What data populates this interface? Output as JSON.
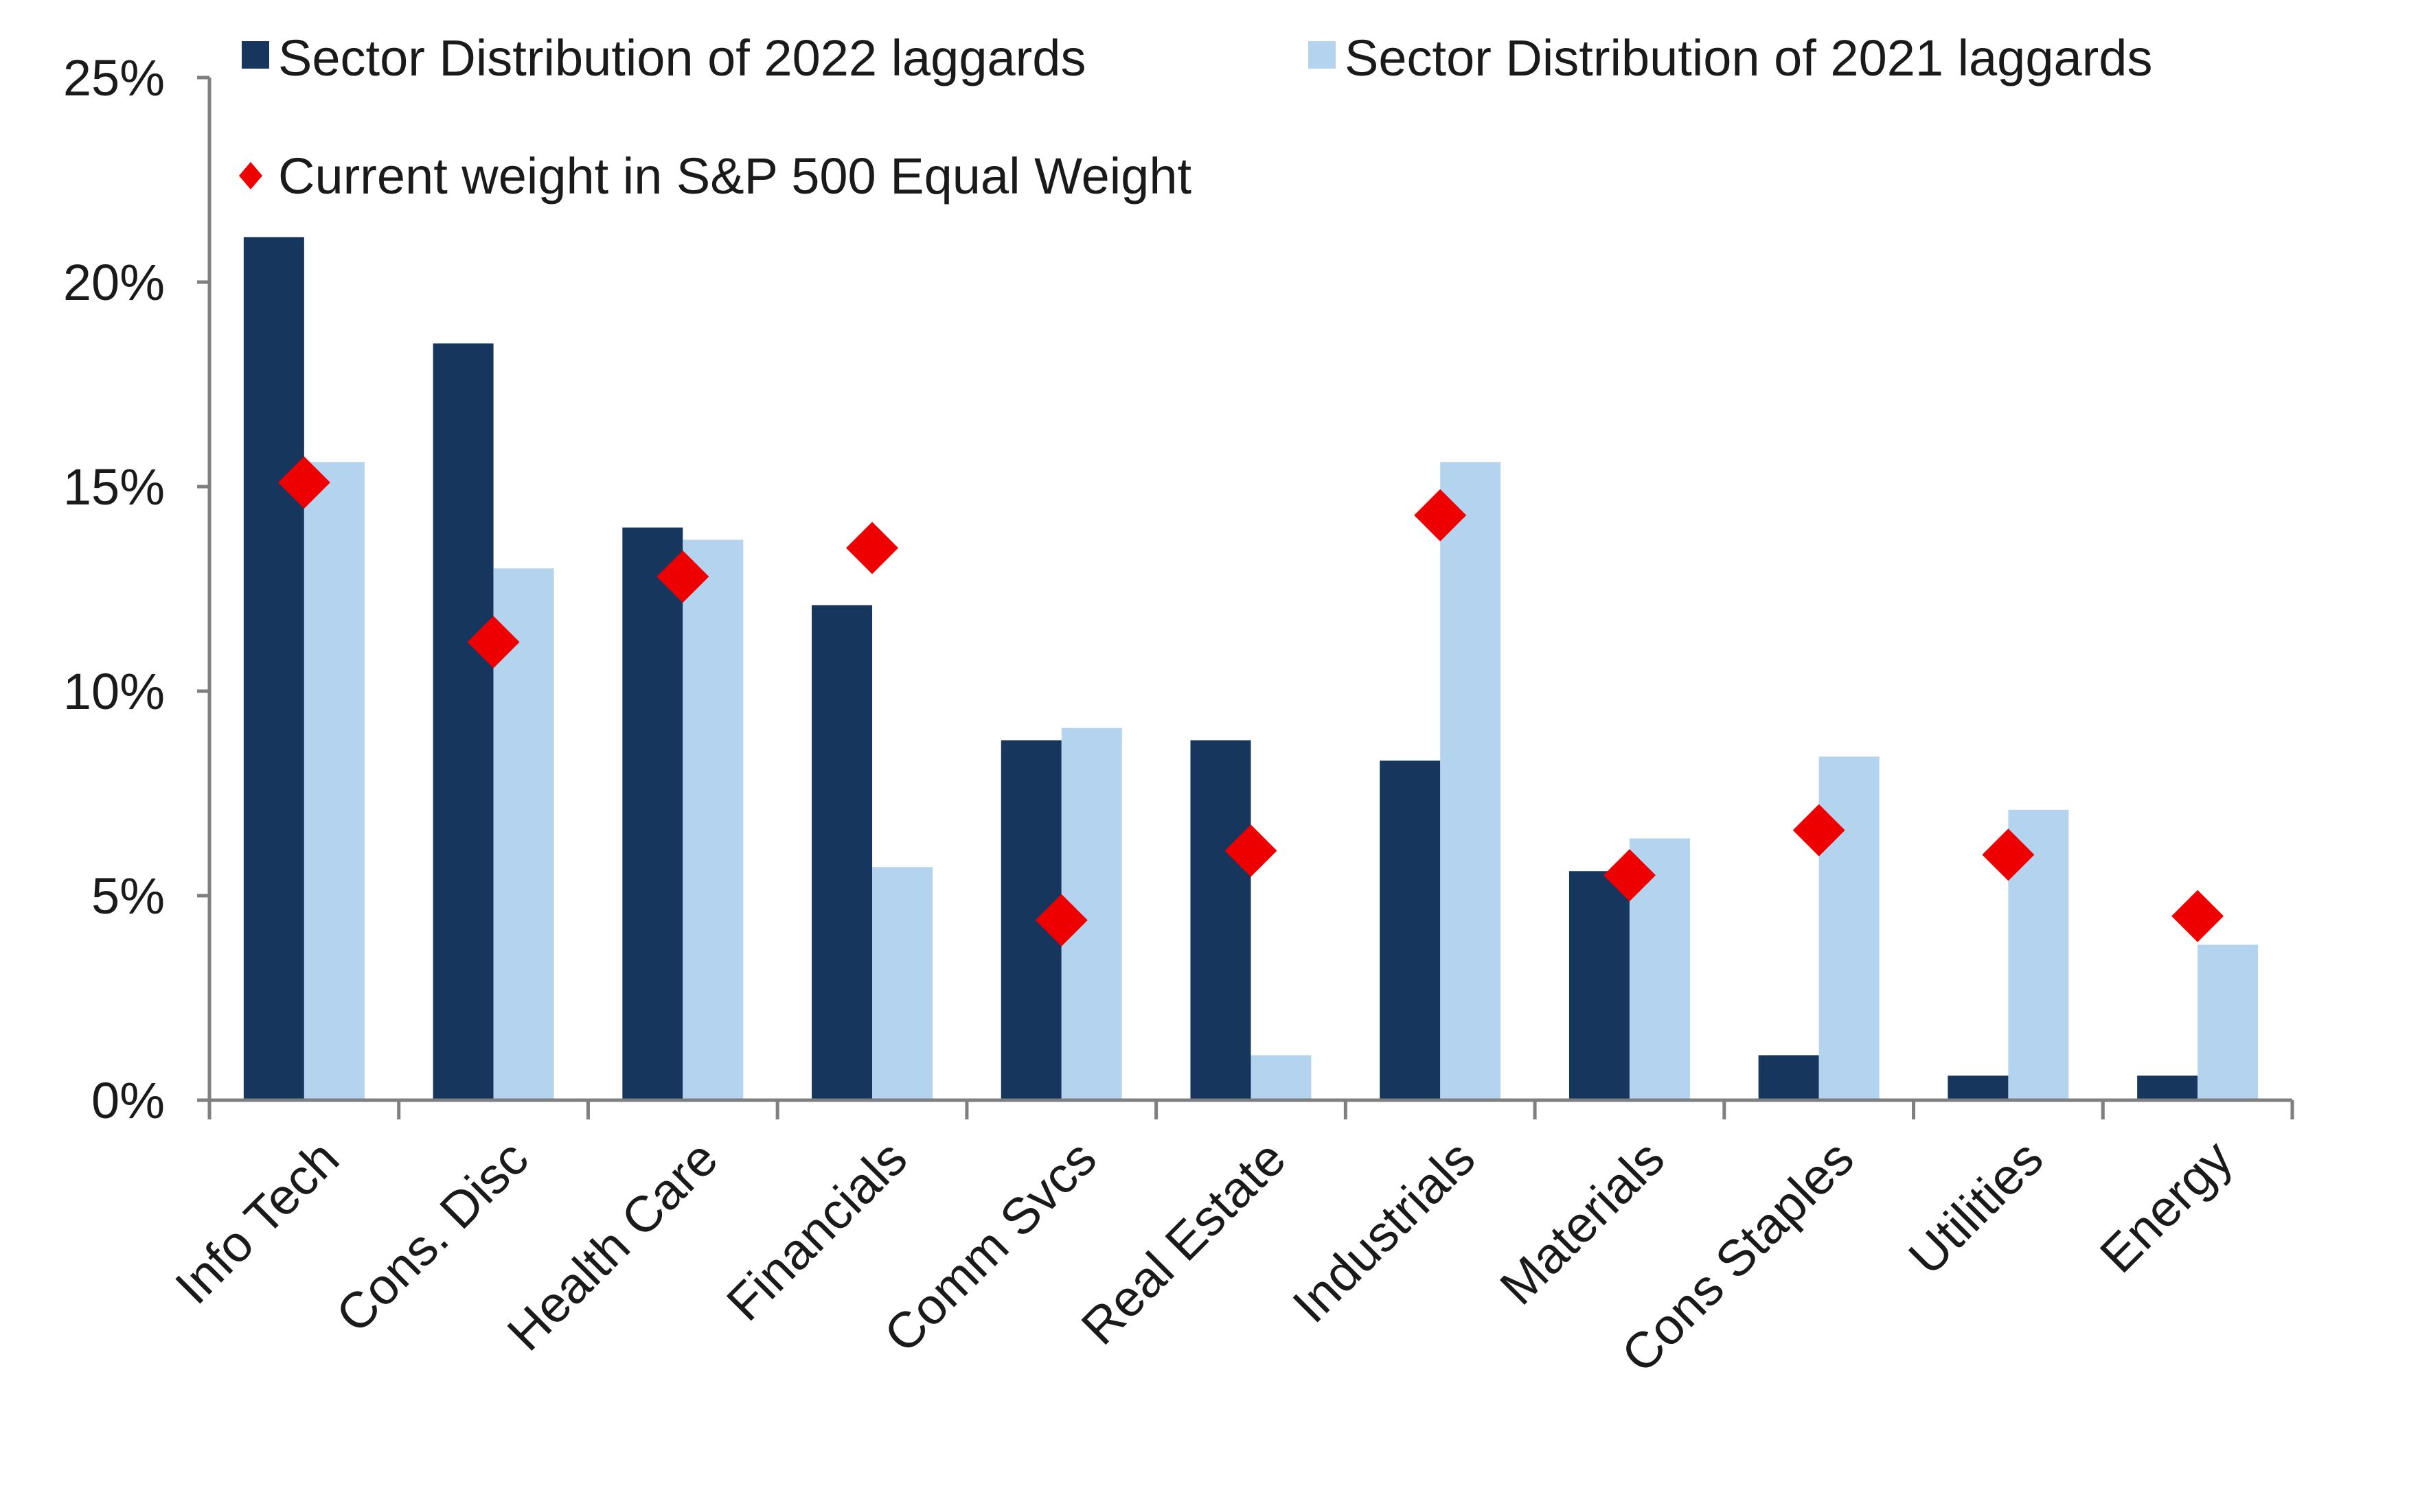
{
  "chart_data": {
    "type": "bar",
    "title": "",
    "xlabel": "",
    "ylabel": "",
    "ylim": [
      0,
      25
    ],
    "yticks": [
      0,
      5,
      10,
      15,
      20,
      25
    ],
    "ytick_labels": [
      "0%",
      "5%",
      "10%",
      "15%",
      "20%",
      "25%"
    ],
    "grid": false,
    "legend_position": "top",
    "categories": [
      "Info Tech",
      "Cons. Disc",
      "Health Care",
      "Financials",
      "Comm Svcs",
      "Real Estate",
      "Industrials",
      "Materials",
      "Cons Staples",
      "Utilities",
      "Energy"
    ],
    "series": [
      {
        "name": "Sector Distribution of 2022 laggards",
        "type": "bar",
        "color": "#17365d",
        "values": [
          21.1,
          18.5,
          14.0,
          12.1,
          8.8,
          8.8,
          8.3,
          5.6,
          1.1,
          0.6,
          0.6
        ]
      },
      {
        "name": "Sector Distribution of 2021 laggards",
        "type": "bar",
        "color": "#b3d3ee",
        "values": [
          15.6,
          13.0,
          13.7,
          5.7,
          9.1,
          1.1,
          15.6,
          6.4,
          8.4,
          7.1,
          3.8
        ]
      },
      {
        "name": "Current weight in S&P 500 Equal Weight",
        "type": "scatter",
        "marker": "diamond",
        "color": "#ee0000",
        "values": [
          15.1,
          11.2,
          12.8,
          13.5,
          4.4,
          6.1,
          14.3,
          5.5,
          6.6,
          6.0,
          4.5
        ]
      }
    ]
  }
}
